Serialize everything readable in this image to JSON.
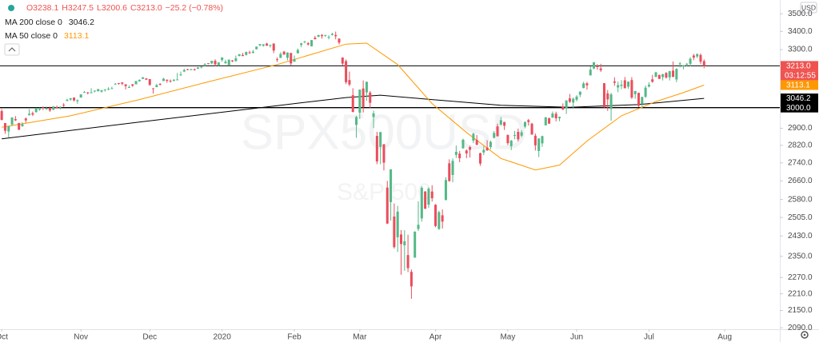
{
  "chart_data": {
    "type": "candlestick",
    "currency": "USD",
    "watermark": [
      "SPX500USD",
      "S&P 500"
    ],
    "legend": {
      "ohlc": [
        "O3238.1",
        "H3247.5",
        "L3200.6",
        "C3213.0",
        "−25.2 (−0.78%)"
      ]
    },
    "up_color": "#53b987",
    "down_color": "#eb4d5c",
    "log_scale": true,
    "xlim": [
      -0.5,
      226
    ],
    "xticks": [
      {
        "value": 0,
        "label": "Oct"
      },
      {
        "value": 23,
        "label": "Nov"
      },
      {
        "value": 43,
        "label": "Dec"
      },
      {
        "value": 64,
        "label": "2020"
      },
      {
        "value": 85,
        "label": "Feb"
      },
      {
        "value": 104,
        "label": "Mar"
      },
      {
        "value": 126,
        "label": "Apr"
      },
      {
        "value": 147,
        "label": "May"
      },
      {
        "value": 167,
        "label": "Jun"
      },
      {
        "value": 188,
        "label": "Jul"
      },
      {
        "value": 210,
        "label": "Aug"
      }
    ],
    "ylim": [
      2085,
      3580
    ],
    "yticks": [
      {
        "value": 3500,
        "label": "3500.0"
      },
      {
        "value": 3400,
        "label": "3400.0"
      },
      {
        "value": 3300,
        "label": "3300.0"
      },
      {
        "value": 2900,
        "label": "2900.0"
      },
      {
        "value": 2820,
        "label": "2820.0"
      },
      {
        "value": 2740,
        "label": "2740.0"
      },
      {
        "value": 2660,
        "label": "2660.0"
      },
      {
        "value": 2580,
        "label": "2580.0"
      },
      {
        "value": 2505,
        "label": "2505.0"
      },
      {
        "value": 2430,
        "label": "2430.0"
      },
      {
        "value": 2350,
        "label": "2350.0"
      },
      {
        "value": 2270,
        "label": "2270.0"
      },
      {
        "value": 2210,
        "label": "2210.0"
      },
      {
        "value": 2150,
        "label": "2150.0"
      },
      {
        "value": 2090,
        "label": "2090.0"
      }
    ],
    "hlines": [
      {
        "value": 3213,
        "label": "3213.0",
        "color": "#ef5350",
        "countdown": "03:12:55"
      },
      {
        "value": 3000,
        "label": "3000.0",
        "color": "#000000"
      }
    ],
    "series": [
      {
        "name": "MA 200 close 0",
        "color": "#000000",
        "x": [
          0,
          40,
          80,
          100,
          110,
          125,
          145,
          165,
          185,
          204
        ],
        "values": [
          2850,
          2930,
          3010,
          3050,
          3062,
          3040,
          3012,
          3002,
          3015,
          3046.2
        ]
      },
      {
        "name": "MA 50 close 0",
        "color": "#ff9800",
        "x": [
          0,
          20,
          40,
          60,
          80,
          100,
          106,
          115,
          125,
          135,
          145,
          155,
          162,
          170,
          180,
          190,
          198,
          204
        ],
        "values": [
          2905,
          2960,
          3040,
          3130,
          3220,
          3330,
          3335,
          3220,
          3020,
          2880,
          2760,
          2708,
          2730,
          2840,
          2960,
          3030,
          3075,
          3113.1
        ]
      }
    ],
    "candles": [
      [
        2983,
        2993,
        2938,
        2940
      ],
      [
        2925,
        2925,
        2874,
        2888
      ],
      [
        2885,
        2911,
        2856,
        2910
      ],
      [
        2918,
        2953,
        2911,
        2952
      ],
      [
        2944,
        2959,
        2935,
        2938
      ],
      [
        2925,
        2926,
        2892,
        2893
      ],
      [
        2910,
        2929,
        2907,
        2919
      ],
      [
        2947,
        2952,
        2927,
        2938
      ],
      [
        2963,
        2993,
        2962,
        2970
      ],
      [
        2973,
        2981,
        2959,
        2966
      ],
      [
        2978,
        3000,
        2976,
        2996
      ],
      [
        2990,
        3000,
        2985,
        2995
      ],
      [
        3001,
        3006,
        2988,
        2998
      ],
      [
        2996,
        3005,
        2989,
        2997
      ],
      [
        2999,
        3005,
        2979,
        2986
      ],
      [
        2990,
        3007,
        2987,
        3006
      ],
      [
        3003,
        3010,
        2995,
        2996
      ],
      [
        3000,
        3006,
        2991,
        3004
      ],
      [
        3014,
        3022,
        3004,
        3010
      ],
      [
        3033,
        3044,
        3032,
        3039
      ],
      [
        3040,
        3047,
        3034,
        3047
      ],
      [
        3050,
        3051,
        3031,
        3036
      ],
      [
        3032,
        3041,
        3019,
        3037
      ],
      [
        3050,
        3066,
        3050,
        3066
      ],
      [
        3078,
        3083,
        3075,
        3078
      ],
      [
        3076,
        3078,
        3066,
        3074
      ],
      [
        3076,
        3097,
        3074,
        3076
      ],
      [
        3081,
        3086,
        3076,
        3085
      ],
      [
        3082,
        3093,
        3081,
        3093
      ],
      [
        3080,
        3088,
        3075,
        3087
      ],
      [
        3089,
        3092,
        3080,
        3091
      ],
      [
        3090,
        3102,
        3087,
        3094
      ],
      [
        3096,
        3105,
        3094,
        3097
      ],
      [
        3118,
        3124,
        3116,
        3120
      ],
      [
        3123,
        3124,
        3116,
        3122
      ],
      [
        3127,
        3127,
        3113,
        3120
      ],
      [
        3117,
        3118,
        3091,
        3108
      ],
      [
        3101,
        3112,
        3099,
        3103
      ],
      [
        3117,
        3119,
        3104,
        3110
      ],
      [
        3117,
        3134,
        3117,
        3134
      ],
      [
        3133,
        3142,
        3131,
        3140
      ],
      [
        3145,
        3155,
        3144,
        3153
      ],
      [
        3147,
        3150,
        3139,
        3141
      ],
      [
        3144,
        3144,
        3110,
        3114
      ],
      [
        3097,
        3097,
        3070,
        3094
      ],
      [
        3103,
        3120,
        3102,
        3113
      ],
      [
        3119,
        3123,
        3111,
        3117
      ],
      [
        3134,
        3150,
        3134,
        3146
      ],
      [
        3141,
        3141,
        3125,
        3135
      ],
      [
        3135,
        3142,
        3126,
        3132
      ],
      [
        3135,
        3143,
        3133,
        3141
      ],
      [
        3141,
        3176,
        3138,
        3142
      ],
      [
        3166,
        3183,
        3160,
        3168
      ],
      [
        3183,
        3198,
        3180,
        3191
      ],
      [
        3195,
        3198,
        3191,
        3192
      ],
      [
        3192,
        3198,
        3191,
        3195
      ],
      [
        3195,
        3199,
        3188,
        3192
      ],
      [
        3198,
        3207,
        3197,
        3205
      ],
      [
        3206,
        3210,
        3200,
        3208
      ],
      [
        3223,
        3226,
        3212,
        3224
      ],
      [
        3227,
        3227,
        3222,
        3223
      ],
      [
        3226,
        3240,
        3222,
        3240
      ],
      [
        3240,
        3248,
        3212,
        3221
      ],
      [
        3216,
        3232,
        3212,
        3231
      ],
      [
        3244,
        3258,
        3235,
        3258
      ],
      [
        3227,
        3246,
        3224,
        3235
      ],
      [
        3217,
        3247,
        3214,
        3246
      ],
      [
        3242,
        3244,
        3233,
        3237
      ],
      [
        3238,
        3268,
        3236,
        3253
      ],
      [
        3266,
        3276,
        3263,
        3275
      ],
      [
        3271,
        3282,
        3265,
        3265
      ],
      [
        3271,
        3288,
        3268,
        3288
      ],
      [
        3285,
        3294,
        3277,
        3283
      ],
      [
        3282,
        3298,
        3280,
        3289
      ],
      [
        3302,
        3317,
        3301,
        3316
      ],
      [
        3323,
        3330,
        3318,
        3330
      ],
      [
        3321,
        3329,
        3316,
        3329
      ],
      [
        3333,
        3337,
        3320,
        3321
      ],
      [
        3321,
        3327,
        3311,
        3325
      ],
      [
        3333,
        3334,
        3281,
        3295
      ],
      [
        3248,
        3258,
        3234,
        3244
      ],
      [
        3255,
        3286,
        3255,
        3276
      ],
      [
        3289,
        3293,
        3272,
        3273
      ],
      [
        3256,
        3285,
        3242,
        3284
      ],
      [
        3282,
        3282,
        3214,
        3226
      ],
      [
        3235,
        3268,
        3235,
        3249
      ],
      [
        3280,
        3306,
        3280,
        3298
      ],
      [
        3325,
        3337,
        3313,
        3334
      ],
      [
        3344,
        3347,
        3334,
        3345
      ],
      [
        3335,
        3341,
        3322,
        3328
      ],
      [
        3318,
        3352,
        3317,
        3352
      ],
      [
        3365,
        3375,
        3355,
        3357
      ],
      [
        3370,
        3381,
        3369,
        3380
      ],
      [
        3380,
        3385,
        3360,
        3374
      ],
      [
        3378,
        3381,
        3369,
        3380
      ],
      [
        3370,
        3378,
        3356,
        3370
      ],
      [
        3380,
        3393,
        3378,
        3386
      ],
      [
        3380,
        3399,
        3356,
        3373
      ],
      [
        3360,
        3361,
        3328,
        3338
      ],
      [
        3257,
        3259,
        3214,
        3225
      ],
      [
        3238,
        3247,
        3118,
        3128
      ],
      [
        3139,
        3183,
        3108,
        3116
      ],
      [
        3062,
        3097,
        2977,
        2979
      ],
      [
        2916,
        2960,
        2855,
        2954
      ],
      [
        2975,
        3091,
        2945,
        3090
      ],
      [
        3096,
        3137,
        2976,
        3003
      ],
      [
        3076,
        3131,
        3034,
        3130
      ],
      [
        3075,
        3083,
        2999,
        3024
      ],
      [
        2954,
        2985,
        2901,
        2972
      ],
      [
        2864,
        2883,
        2734,
        2746
      ],
      [
        2813,
        2883,
        2734,
        2882
      ],
      [
        2825,
        2826,
        2706,
        2741
      ],
      [
        2631,
        2660,
        2478,
        2480
      ],
      [
        2569,
        2711,
        2492,
        2711
      ],
      [
        2509,
        2563,
        2380,
        2386
      ],
      [
        2425,
        2553,
        2367,
        2529
      ],
      [
        2436,
        2454,
        2280,
        2398
      ],
      [
        2393,
        2453,
        2295,
        2409
      ],
      [
        2355,
        2435,
        2290,
        2305
      ],
      [
        2291,
        2300,
        2192,
        2237
      ],
      [
        2345,
        2449,
        2345,
        2447
      ],
      [
        2458,
        2572,
        2450,
        2475
      ],
      [
        2501,
        2637,
        2488,
        2630
      ],
      [
        2614,
        2616,
        2540,
        2541
      ],
      [
        2558,
        2632,
        2545,
        2626
      ],
      [
        2614,
        2641,
        2571,
        2585
      ],
      [
        2558,
        2560,
        2465,
        2470
      ],
      [
        2458,
        2533,
        2455,
        2527
      ],
      [
        2514,
        2538,
        2460,
        2488
      ],
      [
        2578,
        2676,
        2576,
        2664
      ],
      [
        2738,
        2756,
        2657,
        2659
      ],
      [
        2686,
        2760,
        2654,
        2749
      ],
      [
        2776,
        2819,
        2762,
        2790
      ],
      [
        2782,
        2794,
        2743,
        2761
      ],
      [
        2806,
        2851,
        2805,
        2846
      ],
      [
        2796,
        2801,
        2761,
        2783
      ],
      [
        2812,
        2818,
        2764,
        2799
      ],
      [
        2842,
        2879,
        2830,
        2874
      ],
      [
        2845,
        2868,
        2820,
        2823
      ],
      [
        2784,
        2786,
        2727,
        2737
      ],
      [
        2787,
        2815,
        2775,
        2799
      ],
      [
        2810,
        2844,
        2794,
        2797
      ],
      [
        2812,
        2842,
        2801,
        2836
      ],
      [
        2855,
        2887,
        2852,
        2878
      ],
      [
        2909,
        2922,
        2860,
        2863
      ],
      [
        2918,
        2954,
        2912,
        2939
      ],
      [
        2930,
        2930,
        2892,
        2912
      ],
      [
        2869,
        2869,
        2821,
        2830
      ],
      [
        2816,
        2845,
        2798,
        2842
      ],
      [
        2866,
        2887,
        2848,
        2868
      ],
      [
        2883,
        2899,
        2838,
        2848
      ],
      [
        2865,
        2891,
        2858,
        2881
      ],
      [
        2908,
        2933,
        2900,
        2930
      ],
      [
        2939,
        2945,
        2913,
        2930
      ],
      [
        2922,
        2926,
        2870,
        2870
      ],
      [
        2865,
        2875,
        2796,
        2820
      ],
      [
        2794,
        2852,
        2766,
        2852
      ],
      [
        2829,
        2865,
        2813,
        2863
      ],
      [
        2914,
        2954,
        2914,
        2953
      ],
      [
        2948,
        2952,
        2922,
        2922
      ],
      [
        2951,
        2981,
        2951,
        2971
      ],
      [
        2970,
        2980,
        2933,
        2948
      ],
      [
        2948,
        2956,
        2934,
        2955
      ],
      [
        3004,
        3021,
        2988,
        2991
      ],
      [
        2996,
        3036,
        2969,
        3036
      ],
      [
        3046,
        3068,
        3023,
        3029
      ],
      [
        3025,
        3050,
        2999,
        3044
      ],
      [
        3039,
        3062,
        3031,
        3055
      ],
      [
        3064,
        3081,
        3052,
        3080
      ],
      [
        3098,
        3130,
        3097,
        3122
      ],
      [
        3122,
        3129,
        3090,
        3112
      ],
      [
        3163,
        3211,
        3163,
        3193
      ],
      [
        3199,
        3233,
        3196,
        3232
      ],
      [
        3213,
        3222,
        3193,
        3207
      ],
      [
        3199,
        3224,
        3181,
        3190
      ],
      [
        3123,
        3123,
        3000,
        3002
      ],
      [
        3071,
        3088,
        2984,
        3041
      ],
      [
        2994,
        3074,
        2936,
        3066
      ],
      [
        3132,
        3153,
        3109,
        3125
      ],
      [
        3101,
        3131,
        3077,
        3113
      ],
      [
        3109,
        3138,
        3092,
        3115
      ],
      [
        3138,
        3155,
        3097,
        3097
      ],
      [
        3105,
        3131,
        3094,
        3131
      ],
      [
        3139,
        3154,
        3043,
        3050
      ],
      [
        3067,
        3084,
        3044,
        3083
      ],
      [
        3074,
        3074,
        3004,
        3009
      ],
      [
        3018,
        3054,
        2999,
        3053
      ],
      [
        3054,
        3111,
        3048,
        3100
      ],
      [
        3106,
        3128,
        3101,
        3115
      ],
      [
        3143,
        3166,
        3125,
        3130
      ],
      [
        3155,
        3182,
        3155,
        3179
      ],
      [
        3166,
        3166,
        3144,
        3145
      ],
      [
        3154,
        3172,
        3137,
        3169
      ],
      [
        3176,
        3180,
        3146,
        3152
      ],
      [
        3153,
        3187,
        3137,
        3185
      ],
      [
        3188,
        3236,
        3156,
        3155
      ],
      [
        3142,
        3200,
        3128,
        3197
      ],
      [
        3226,
        3233,
        3205,
        3226
      ],
      [
        3209,
        3218,
        3195,
        3215
      ],
      [
        3223,
        3228,
        3212,
        3224
      ],
      [
        3224,
        3259,
        3211,
        3251
      ],
      [
        3268,
        3277,
        3243,
        3257
      ],
      [
        3263,
        3279,
        3254,
        3276
      ],
      [
        3271,
        3279,
        3222,
        3235
      ],
      [
        3238.1,
        3247.5,
        3200.6,
        3213.0
      ]
    ]
  }
}
